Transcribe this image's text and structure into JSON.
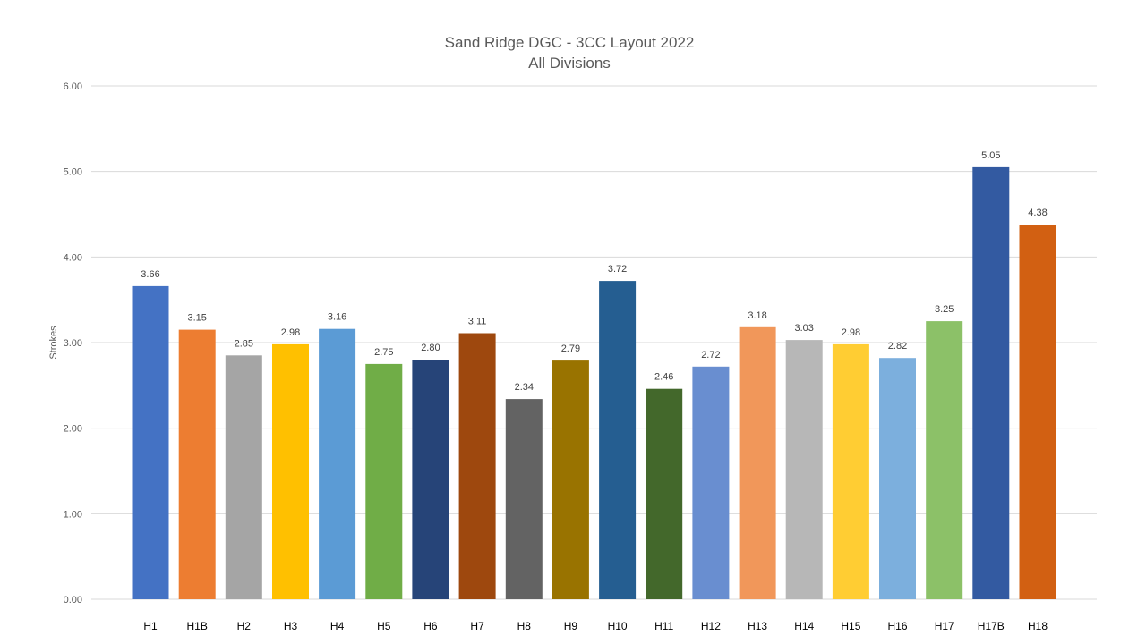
{
  "chart_data": {
    "type": "bar",
    "title": "Sand Ridge DGC - 3CC Layout 2022",
    "subtitle": "All Divisions",
    "xlabel": "",
    "ylabel": "Strokes",
    "ylim": [
      0,
      6
    ],
    "yticks": [
      "0.00",
      "1.00",
      "2.00",
      "3.00",
      "4.00",
      "5.00",
      "6.00"
    ],
    "grid": true,
    "legend": "none",
    "categories": [
      "H1",
      "H1B",
      "H2",
      "H3",
      "H4",
      "H5",
      "H6",
      "H7",
      "H8",
      "H9",
      "H10",
      "H11",
      "H12",
      "H13",
      "H14",
      "H15",
      "H16",
      "H17",
      "H17B",
      "H18"
    ],
    "values": [
      3.66,
      3.15,
      2.85,
      2.98,
      3.16,
      2.75,
      2.8,
      3.11,
      2.34,
      2.79,
      3.72,
      2.46,
      2.72,
      3.18,
      3.03,
      2.98,
      2.82,
      3.25,
      5.05,
      4.38
    ],
    "value_labels": [
      "3.66",
      "3.15",
      "2.85",
      "2.98",
      "3.16",
      "2.75",
      "2.80",
      "3.11",
      "2.34",
      "2.79",
      "3.72",
      "2.46",
      "2.72",
      "3.18",
      "3.03",
      "2.98",
      "2.82",
      "3.25",
      "5.05",
      "4.38"
    ],
    "colors": [
      "#4472c4",
      "#ed7d31",
      "#a5a5a5",
      "#ffc000",
      "#5b9bd5",
      "#70ad47",
      "#264478",
      "#9e480e",
      "#636363",
      "#997300",
      "#255e91",
      "#43682b",
      "#698ed0",
      "#f1975a",
      "#b7b7b7",
      "#ffcd33",
      "#7cafdd",
      "#8cc168",
      "#335aa1",
      "#d26012"
    ]
  }
}
